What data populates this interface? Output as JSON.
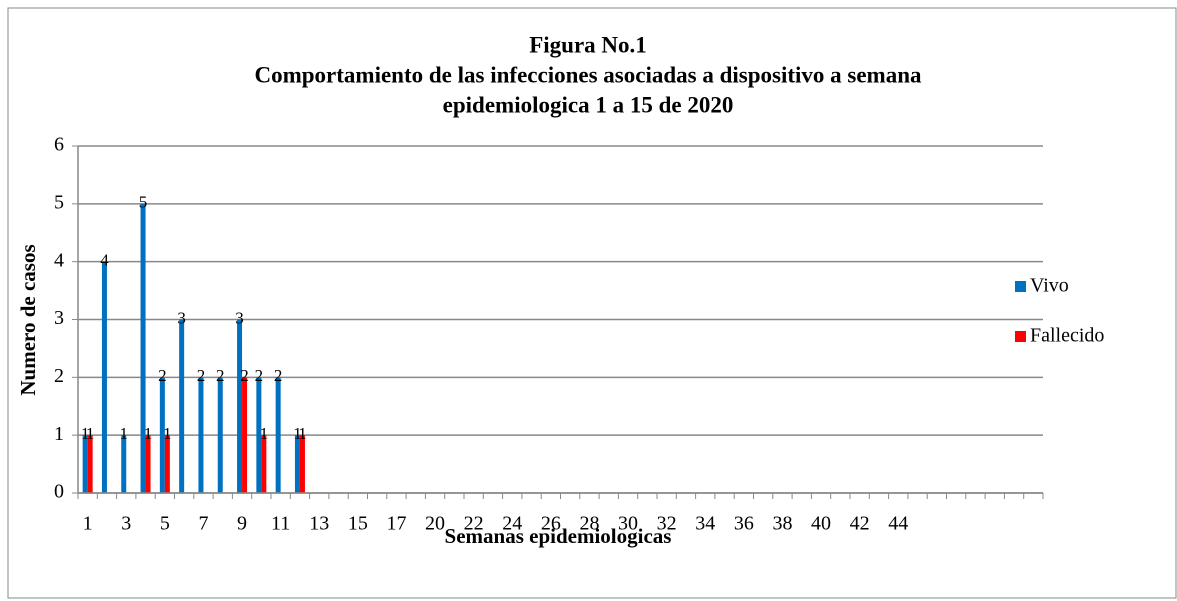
{
  "chart_data": {
    "type": "bar",
    "title": [
      "Figura No.1",
      "Comportamiento de las infecciones asociadas a dispositivo a semana",
      "epidemiologica  1 a 15  de 2020"
    ],
    "ylabel": "Numero de casos",
    "xlabel": "Semanas epidemiologicas",
    "categories": [
      1,
      null,
      3,
      null,
      5,
      null,
      7,
      null,
      9,
      null,
      11,
      null,
      13,
      null,
      15,
      null,
      17,
      null,
      20,
      null,
      22,
      null,
      24,
      null,
      26,
      null,
      28,
      null,
      30,
      null,
      32,
      null,
      34,
      null,
      36,
      null,
      38,
      null,
      40,
      null,
      42,
      null,
      44,
      null,
      null,
      null,
      null,
      null,
      null,
      null
    ],
    "series": [
      {
        "name": "Vivo",
        "color": "#0070c0",
        "values": [
          1,
          4,
          1,
          5,
          2,
          3,
          2,
          2,
          3,
          2,
          2,
          1,
          0,
          0,
          0,
          0,
          0,
          0,
          0,
          0,
          0,
          0,
          0,
          0,
          0,
          0,
          0,
          0,
          0,
          0,
          0,
          0,
          0,
          0,
          0,
          0,
          0,
          0,
          0,
          0,
          0,
          0,
          0,
          0,
          0,
          0,
          0,
          0,
          0,
          0
        ]
      },
      {
        "name": "Fallecido",
        "color": "#ff0000",
        "values": [
          1,
          0,
          0,
          1,
          1,
          0,
          0,
          0,
          2,
          1,
          0,
          1,
          0,
          0,
          0,
          0,
          0,
          0,
          0,
          0,
          0,
          0,
          0,
          0,
          0,
          0,
          0,
          0,
          0,
          0,
          0,
          0,
          0,
          0,
          0,
          0,
          0,
          0,
          0,
          0,
          0,
          0,
          0,
          0,
          0,
          0,
          0,
          0,
          0,
          0
        ]
      }
    ],
    "ylim": [
      0,
      6
    ],
    "yticks": [
      0,
      1,
      2,
      3,
      4,
      5,
      6
    ],
    "grid": true,
    "legend": "right"
  }
}
